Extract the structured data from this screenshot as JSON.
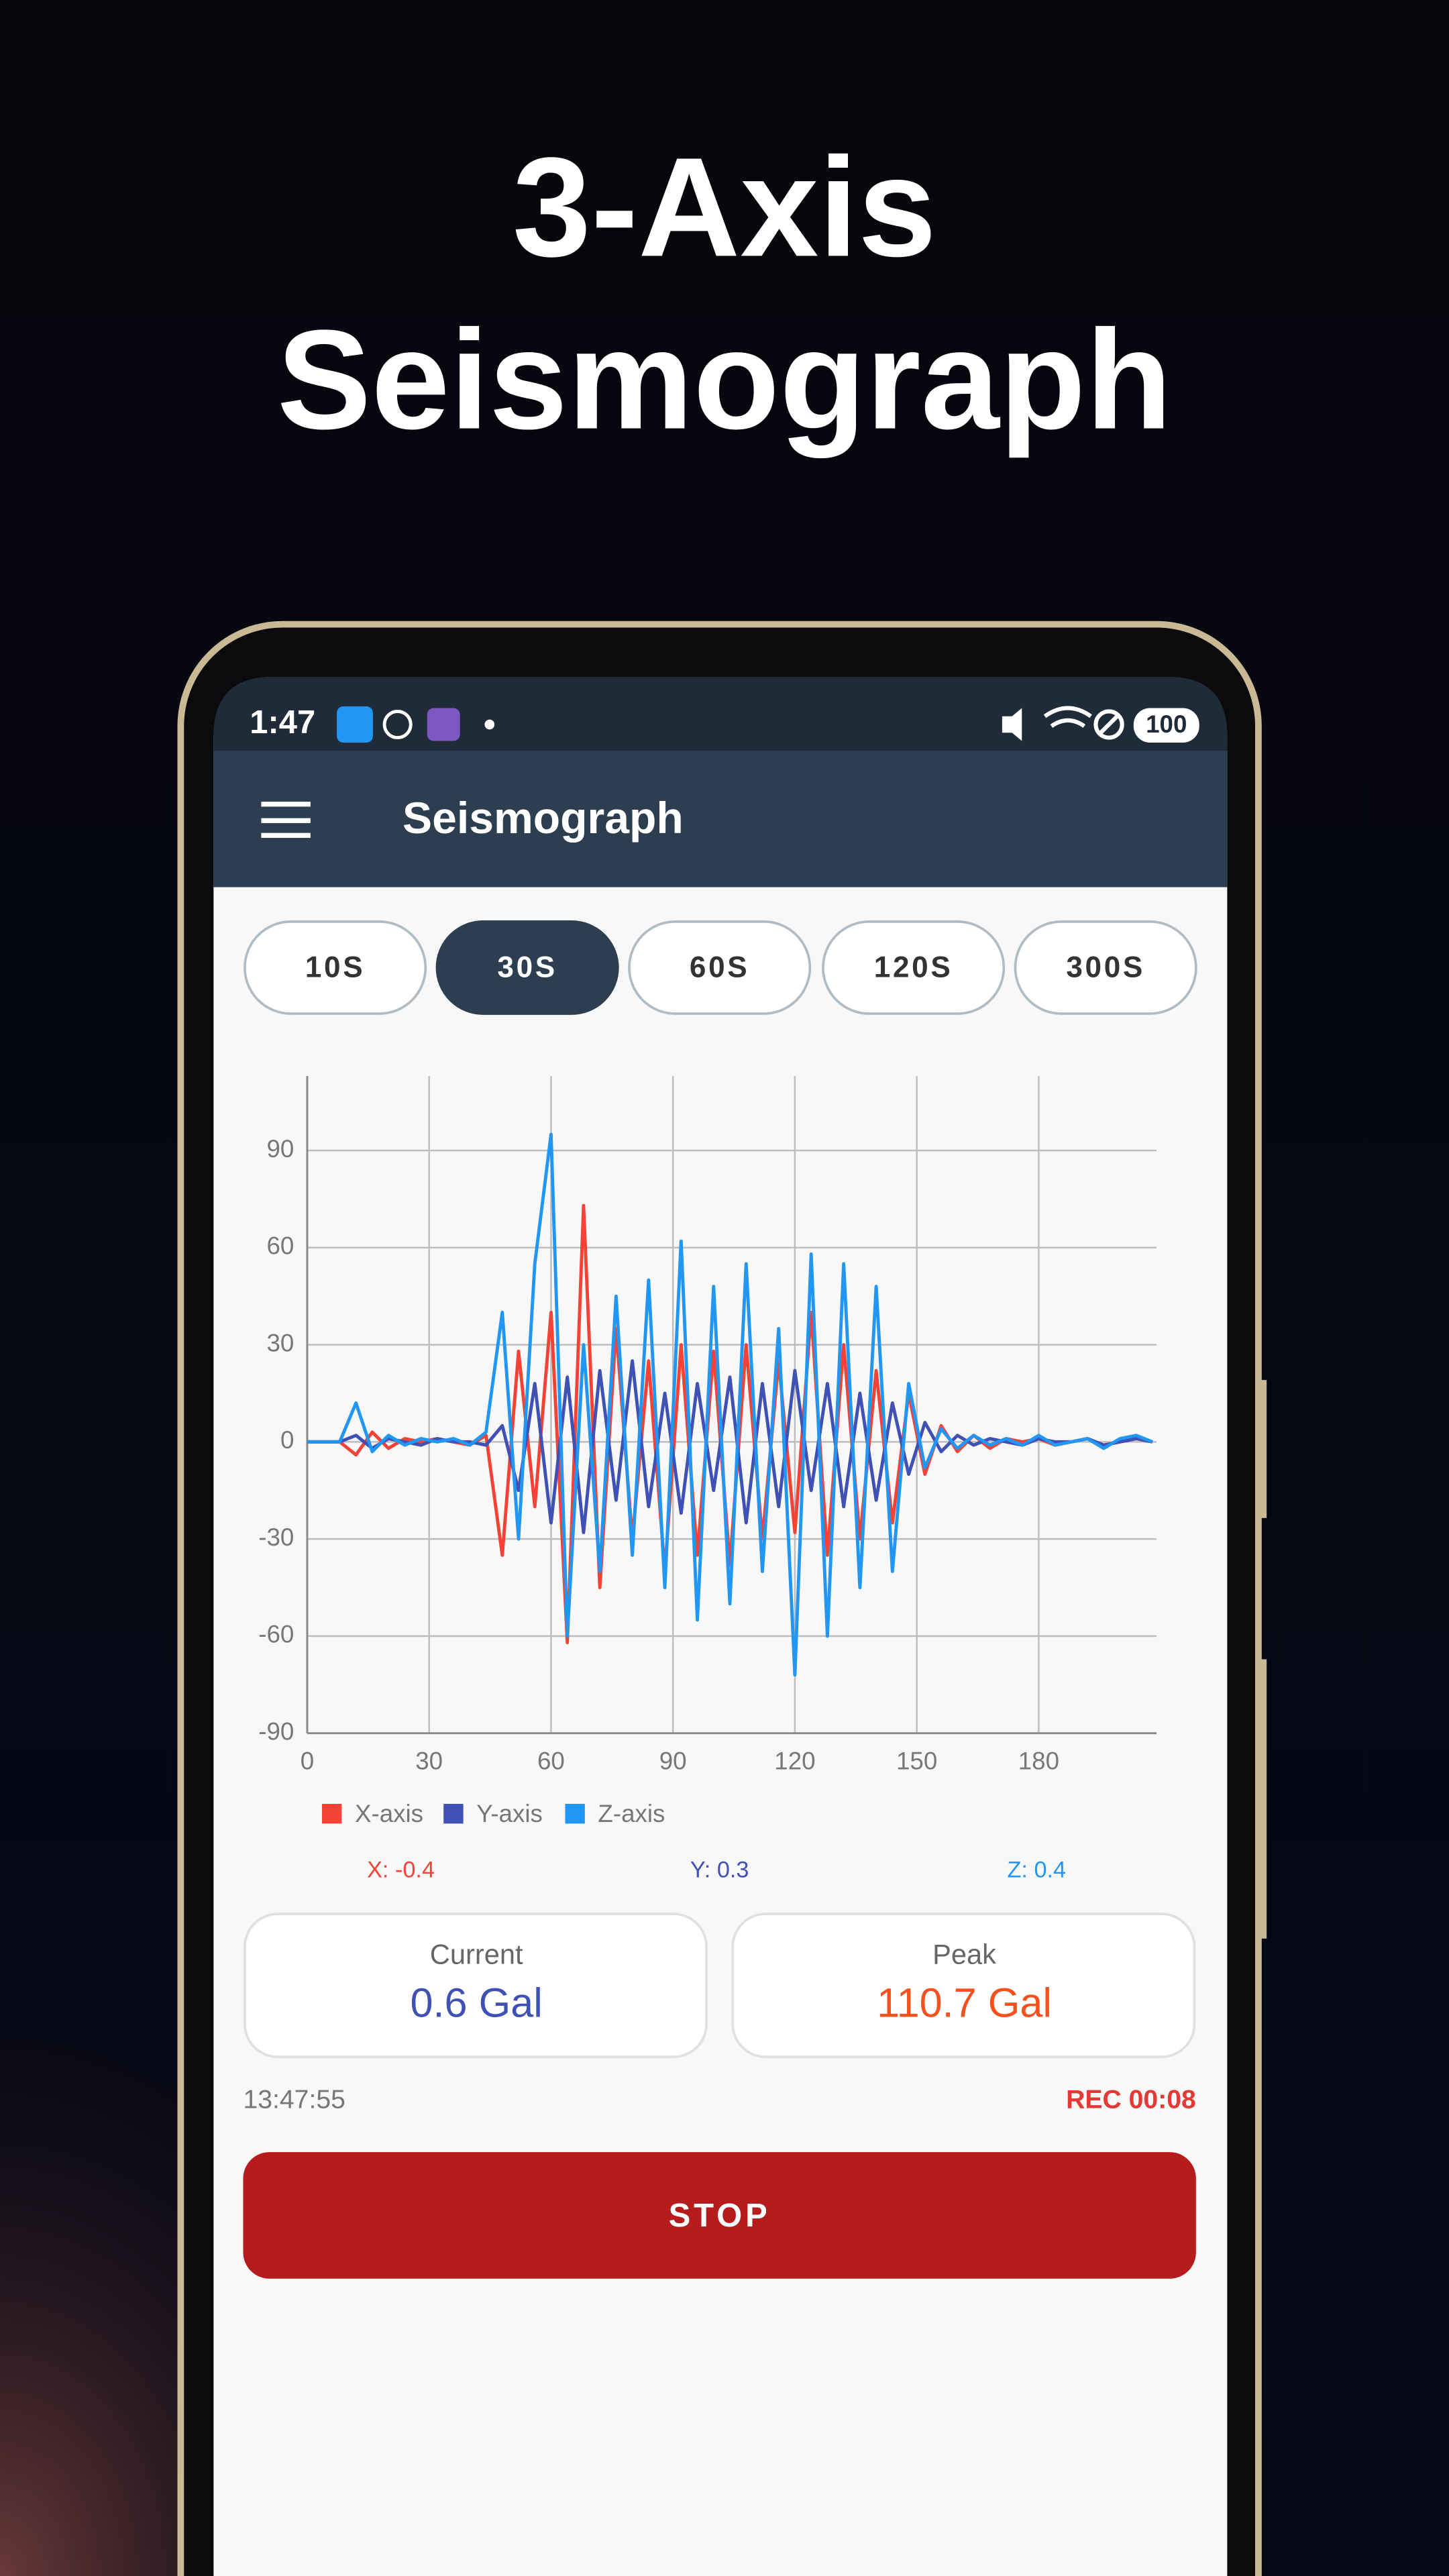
{
  "headline": [
    "3-Axis",
    "Seismograph"
  ],
  "status_bar": {
    "time": "1:47",
    "battery": "100"
  },
  "app_bar": {
    "title": "Seismograph"
  },
  "range_buttons": {
    "options": [
      "10S",
      "30S",
      "60S",
      "120S",
      "300S"
    ],
    "selected": 1
  },
  "chart_data": {
    "type": "line",
    "x": [
      0,
      4,
      8,
      12,
      16,
      20,
      24,
      28,
      32,
      36,
      40,
      44,
      48,
      52,
      56,
      60,
      64,
      68,
      72,
      76,
      80,
      84,
      88,
      92,
      96,
      100,
      104,
      108,
      112,
      116,
      120,
      124,
      128,
      132,
      136,
      140,
      144,
      148,
      152,
      156,
      160,
      164,
      168,
      172,
      176,
      180,
      184,
      188,
      192,
      196,
      200,
      204,
      208
    ],
    "series": [
      {
        "name": "X-axis",
        "color": "#f44336",
        "values": [
          0,
          0,
          0,
          -4,
          3,
          -2,
          1,
          0,
          1,
          0,
          -1,
          2,
          -35,
          28,
          -20,
          40,
          -62,
          73,
          -45,
          35,
          -30,
          25,
          -40,
          30,
          -35,
          28,
          -38,
          30,
          -30,
          25,
          -28,
          40,
          -35,
          30,
          -30,
          22,
          -25,
          15,
          -10,
          5,
          -3,
          2,
          -2,
          1,
          0,
          1,
          -1,
          0,
          1,
          -1,
          0,
          1,
          0
        ]
      },
      {
        "name": "Y-axis",
        "color": "#3f51b5",
        "values": [
          0,
          0,
          0,
          2,
          -2,
          1,
          0,
          -1,
          1,
          0,
          0,
          -1,
          5,
          -15,
          18,
          -25,
          20,
          -28,
          22,
          -18,
          25,
          -20,
          15,
          -22,
          18,
          -15,
          20,
          -25,
          18,
          -20,
          22,
          -15,
          18,
          -20,
          15,
          -18,
          12,
          -10,
          6,
          -3,
          2,
          -1,
          1,
          0,
          -1,
          1,
          0,
          0,
          1,
          -1,
          0,
          1,
          0
        ]
      },
      {
        "name": "Z-axis",
        "color": "#2196f3",
        "values": [
          0,
          0,
          0,
          12,
          -3,
          2,
          -1,
          1,
          0,
          1,
          -1,
          3,
          40,
          -30,
          55,
          95,
          -60,
          30,
          -40,
          45,
          -35,
          50,
          -45,
          62,
          -55,
          48,
          -50,
          55,
          -40,
          35,
          -72,
          58,
          -60,
          55,
          -45,
          48,
          -40,
          18,
          -8,
          4,
          -2,
          2,
          -1,
          1,
          -1,
          2,
          -1,
          0,
          1,
          -2,
          1,
          2,
          0
        ]
      }
    ],
    "xlim": [
      0,
      209
    ],
    "ylim": [
      -90,
      113
    ],
    "xticks": [
      0,
      30,
      60,
      90,
      120,
      150,
      180
    ],
    "yticks": [
      -90,
      -60,
      -30,
      0,
      30,
      60,
      90
    ],
    "grid": true
  },
  "axis_readouts": [
    "X: -0.4",
    "Y: 0.3",
    "Z: 0.4"
  ],
  "cards": [
    {
      "label": "Current",
      "value": "0.6 Gal"
    },
    {
      "label": "Peak",
      "value": "110.7 Gal"
    }
  ],
  "timestamp": "13:47:55",
  "recording": "REC 00:08",
  "stop_button": "STOP"
}
